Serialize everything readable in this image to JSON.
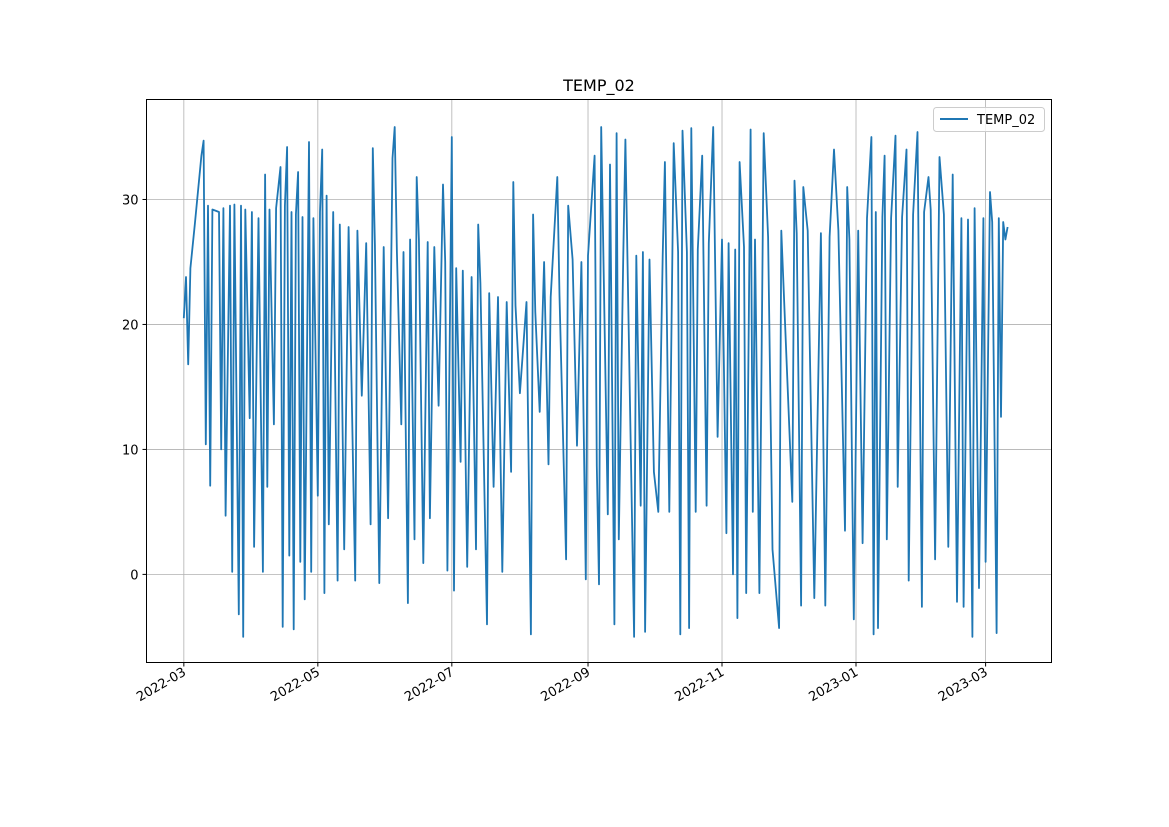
{
  "chart_data": {
    "type": "line",
    "title": "TEMP_02",
    "xlabel": "",
    "ylabel": "",
    "xlim": [
      "2022-02-12",
      "2023-03-31"
    ],
    "ylim": [
      -7.05,
      38
    ],
    "grid": true,
    "legend": {
      "position": "top-right",
      "entries": [
        "TEMP_02"
      ]
    },
    "x_ticks": [
      "2022-03",
      "2022-05",
      "2022-07",
      "2022-09",
      "2022-11",
      "2023-01",
      "2023-03"
    ],
    "y_ticks": [
      0,
      10,
      20,
      30
    ],
    "colors": {
      "series": "#1f77b4",
      "grid": "#b0b0b0"
    },
    "series": [
      {
        "name": "TEMP_02",
        "points": [
          [
            "2022-03-01",
            20.5
          ],
          [
            "2022-03-02",
            23.8
          ],
          [
            "2022-03-03",
            16.8
          ],
          [
            "2022-03-04",
            24.5
          ],
          [
            "2022-03-06",
            28
          ],
          [
            "2022-03-09",
            33.5
          ],
          [
            "2022-03-10",
            34.7
          ],
          [
            "2022-03-11",
            10.4
          ],
          [
            "2022-03-12",
            29.5
          ],
          [
            "2022-03-13",
            7.1
          ],
          [
            "2022-03-14",
            29.2
          ],
          [
            "2022-03-17",
            29
          ],
          [
            "2022-03-18",
            10
          ],
          [
            "2022-03-19",
            29.3
          ],
          [
            "2022-03-20",
            4.7
          ],
          [
            "2022-03-22",
            29.5
          ],
          [
            "2022-03-23",
            0.2
          ],
          [
            "2022-03-24",
            29.6
          ],
          [
            "2022-03-26",
            -3.2
          ],
          [
            "2022-03-27",
            29.5
          ],
          [
            "2022-03-28",
            -5
          ],
          [
            "2022-03-29",
            29.2
          ],
          [
            "2022-03-31",
            12.5
          ],
          [
            "2022-04-01",
            29
          ],
          [
            "2022-04-02",
            2.2
          ],
          [
            "2022-04-04",
            28.5
          ],
          [
            "2022-04-06",
            0.2
          ],
          [
            "2022-04-07",
            32
          ],
          [
            "2022-04-08",
            7
          ],
          [
            "2022-04-09",
            29.2
          ],
          [
            "2022-04-11",
            12
          ],
          [
            "2022-04-12",
            29.3
          ],
          [
            "2022-04-14",
            32.6
          ],
          [
            "2022-04-15",
            -4.2
          ],
          [
            "2022-04-16",
            29.5
          ],
          [
            "2022-04-17",
            34.2
          ],
          [
            "2022-04-18",
            1.5
          ],
          [
            "2022-04-19",
            29
          ],
          [
            "2022-04-20",
            -4.4
          ],
          [
            "2022-04-21",
            28.8
          ],
          [
            "2022-04-22",
            32.2
          ],
          [
            "2022-04-23",
            1
          ],
          [
            "2022-04-24",
            28.6
          ],
          [
            "2022-04-25",
            -2
          ],
          [
            "2022-04-27",
            34.6
          ],
          [
            "2022-04-28",
            0.2
          ],
          [
            "2022-04-29",
            28.5
          ],
          [
            "2022-05-01",
            6.3
          ],
          [
            "2022-05-02",
            29
          ],
          [
            "2022-05-03",
            34
          ],
          [
            "2022-05-04",
            -1.5
          ],
          [
            "2022-05-05",
            30.3
          ],
          [
            "2022-05-06",
            4
          ],
          [
            "2022-05-08",
            29
          ],
          [
            "2022-05-10",
            -0.5
          ],
          [
            "2022-05-11",
            28
          ],
          [
            "2022-05-13",
            2
          ],
          [
            "2022-05-15",
            27.8
          ],
          [
            "2022-05-18",
            -0.5
          ],
          [
            "2022-05-19",
            27.5
          ],
          [
            "2022-05-21",
            14.3
          ],
          [
            "2022-05-23",
            26.5
          ],
          [
            "2022-05-25",
            4
          ],
          [
            "2022-05-26",
            34.1
          ],
          [
            "2022-05-27",
            26.4
          ],
          [
            "2022-05-29",
            -0.7
          ],
          [
            "2022-05-31",
            26.2
          ],
          [
            "2022-06-02",
            4.5
          ],
          [
            "2022-06-04",
            33.3
          ],
          [
            "2022-06-05",
            35.8
          ],
          [
            "2022-06-06",
            25.8
          ],
          [
            "2022-06-08",
            12
          ],
          [
            "2022-06-09",
            25.8
          ],
          [
            "2022-06-11",
            -2.3
          ],
          [
            "2022-06-12",
            26.8
          ],
          [
            "2022-06-14",
            2.8
          ],
          [
            "2022-06-15",
            31.8
          ],
          [
            "2022-06-16",
            26.8
          ],
          [
            "2022-06-18",
            0.9
          ],
          [
            "2022-06-20",
            26.6
          ],
          [
            "2022-06-21",
            4.5
          ],
          [
            "2022-06-23",
            26.2
          ],
          [
            "2022-06-25",
            13.5
          ],
          [
            "2022-06-27",
            31.2
          ],
          [
            "2022-06-28",
            25
          ],
          [
            "2022-06-29",
            0.3
          ],
          [
            "2022-07-01",
            35
          ],
          [
            "2022-07-02",
            -1.3
          ],
          [
            "2022-07-03",
            24.5
          ],
          [
            "2022-07-05",
            9
          ],
          [
            "2022-07-06",
            24.3
          ],
          [
            "2022-07-08",
            0.6
          ],
          [
            "2022-07-10",
            23.8
          ],
          [
            "2022-07-12",
            2
          ],
          [
            "2022-07-13",
            28
          ],
          [
            "2022-07-14",
            23.3
          ],
          [
            "2022-07-17",
            -4
          ],
          [
            "2022-07-18",
            22.5
          ],
          [
            "2022-07-20",
            7
          ],
          [
            "2022-07-22",
            22.2
          ],
          [
            "2022-07-24",
            0.2
          ],
          [
            "2022-07-26",
            21.8
          ],
          [
            "2022-07-28",
            8.2
          ],
          [
            "2022-07-29",
            31.4
          ],
          [
            "2022-07-30",
            21.5
          ],
          [
            "2022-08-01",
            14.5
          ],
          [
            "2022-08-04",
            21.8
          ],
          [
            "2022-08-06",
            -4.8
          ],
          [
            "2022-08-07",
            28.8
          ],
          [
            "2022-08-08",
            21
          ],
          [
            "2022-08-10",
            13
          ],
          [
            "2022-08-12",
            25
          ],
          [
            "2022-08-14",
            8.8
          ],
          [
            "2022-08-15",
            22.2
          ],
          [
            "2022-08-18",
            31.8
          ],
          [
            "2022-08-19",
            22.3
          ],
          [
            "2022-08-22",
            1.2
          ],
          [
            "2022-08-23",
            29.5
          ],
          [
            "2022-08-25",
            25.2
          ],
          [
            "2022-08-27",
            10.3
          ],
          [
            "2022-08-29",
            25
          ],
          [
            "2022-08-31",
            -0.4
          ],
          [
            "2022-09-01",
            25.5
          ],
          [
            "2022-09-04",
            33.5
          ],
          [
            "2022-09-05",
            8.7
          ],
          [
            "2022-09-06",
            -0.8
          ],
          [
            "2022-09-07",
            35.8
          ],
          [
            "2022-09-08",
            25.5
          ],
          [
            "2022-09-10",
            4.8
          ],
          [
            "2022-09-11",
            32.8
          ],
          [
            "2022-09-13",
            -4
          ],
          [
            "2022-09-14",
            35.3
          ],
          [
            "2022-09-15",
            2.8
          ],
          [
            "2022-09-17",
            25.2
          ],
          [
            "2022-09-18",
            34.8
          ],
          [
            "2022-09-20",
            14.5
          ],
          [
            "2022-09-22",
            -5
          ],
          [
            "2022-09-23",
            25.5
          ],
          [
            "2022-09-25",
            5.5
          ],
          [
            "2022-09-26",
            25.8
          ],
          [
            "2022-09-27",
            -4.6
          ],
          [
            "2022-09-29",
            25.2
          ],
          [
            "2022-10-01",
            8.2
          ],
          [
            "2022-10-03",
            5
          ],
          [
            "2022-10-05",
            25.5
          ],
          [
            "2022-10-06",
            33
          ],
          [
            "2022-10-08",
            5
          ],
          [
            "2022-10-10",
            34.5
          ],
          [
            "2022-10-12",
            25.8
          ],
          [
            "2022-10-13",
            -4.8
          ],
          [
            "2022-10-14",
            35.5
          ],
          [
            "2022-10-16",
            25.8
          ],
          [
            "2022-10-17",
            -4.3
          ],
          [
            "2022-10-18",
            35.7
          ],
          [
            "2022-10-20",
            5
          ],
          [
            "2022-10-21",
            26
          ],
          [
            "2022-10-23",
            33.5
          ],
          [
            "2022-10-25",
            5.5
          ],
          [
            "2022-10-26",
            26.5
          ],
          [
            "2022-10-28",
            35.8
          ],
          [
            "2022-10-30",
            11
          ],
          [
            "2022-11-01",
            26.8
          ],
          [
            "2022-11-03",
            3.3
          ],
          [
            "2022-11-04",
            26.5
          ],
          [
            "2022-11-06",
            0
          ],
          [
            "2022-11-07",
            26
          ],
          [
            "2022-11-08",
            -3.5
          ],
          [
            "2022-11-09",
            33
          ],
          [
            "2022-11-11",
            26.2
          ],
          [
            "2022-11-12",
            -1.5
          ],
          [
            "2022-11-14",
            35.6
          ],
          [
            "2022-11-15",
            5
          ],
          [
            "2022-11-16",
            26.8
          ],
          [
            "2022-11-18",
            -1.5
          ],
          [
            "2022-11-20",
            35.3
          ],
          [
            "2022-11-22",
            27
          ],
          [
            "2022-11-24",
            2
          ],
          [
            "2022-11-27",
            -4.3
          ],
          [
            "2022-11-28",
            27.5
          ],
          [
            "2022-12-03",
            5.8
          ],
          [
            "2022-12-04",
            31.5
          ],
          [
            "2022-12-05",
            27.3
          ],
          [
            "2022-12-07",
            -2.5
          ],
          [
            "2022-12-08",
            31
          ],
          [
            "2022-12-10",
            27.5
          ],
          [
            "2022-12-13",
            -1.9
          ],
          [
            "2022-12-16",
            27.3
          ],
          [
            "2022-12-18",
            -2.5
          ],
          [
            "2022-12-20",
            27
          ],
          [
            "2022-12-22",
            34
          ],
          [
            "2022-12-24",
            27.5
          ],
          [
            "2022-12-27",
            3.5
          ],
          [
            "2022-12-28",
            31
          ],
          [
            "2022-12-29",
            26.8
          ],
          [
            "2022-12-31",
            -3.6
          ],
          [
            "2023-01-02",
            27.5
          ],
          [
            "2023-01-04",
            2.5
          ],
          [
            "2023-01-06",
            28.5
          ],
          [
            "2023-01-08",
            35
          ],
          [
            "2023-01-09",
            -4.8
          ],
          [
            "2023-01-10",
            29
          ],
          [
            "2023-01-11",
            -4.3
          ],
          [
            "2023-01-13",
            28.6
          ],
          [
            "2023-01-14",
            33.5
          ],
          [
            "2023-01-15",
            2.8
          ],
          [
            "2023-01-17",
            28.5
          ],
          [
            "2023-01-19",
            35.1
          ],
          [
            "2023-01-20",
            7
          ],
          [
            "2023-01-22",
            28.6
          ],
          [
            "2023-01-24",
            34
          ],
          [
            "2023-01-25",
            -0.5
          ],
          [
            "2023-01-27",
            28.8
          ],
          [
            "2023-01-29",
            35.4
          ],
          [
            "2023-01-31",
            -2.6
          ],
          [
            "2023-02-01",
            29
          ],
          [
            "2023-02-03",
            31.8
          ],
          [
            "2023-02-04",
            29.2
          ],
          [
            "2023-02-06",
            1.2
          ],
          [
            "2023-02-08",
            33.4
          ],
          [
            "2023-02-10",
            28.8
          ],
          [
            "2023-02-12",
            2.2
          ],
          [
            "2023-02-14",
            32
          ],
          [
            "2023-02-16",
            -2.2
          ],
          [
            "2023-02-18",
            28.5
          ],
          [
            "2023-02-19",
            -2.6
          ],
          [
            "2023-02-21",
            28.4
          ],
          [
            "2023-02-23",
            -5
          ],
          [
            "2023-02-24",
            29.3
          ],
          [
            "2023-02-26",
            -1.1
          ],
          [
            "2023-02-28",
            28.5
          ],
          [
            "2023-03-01",
            1
          ],
          [
            "2023-03-03",
            30.6
          ],
          [
            "2023-03-04",
            28.2
          ],
          [
            "2023-03-06",
            -4.7
          ],
          [
            "2023-03-07",
            28.5
          ],
          [
            "2023-03-08",
            12.6
          ],
          [
            "2023-03-09",
            28.2
          ],
          [
            "2023-03-10",
            26.8
          ],
          [
            "2023-03-11",
            27.8
          ]
        ]
      }
    ]
  }
}
